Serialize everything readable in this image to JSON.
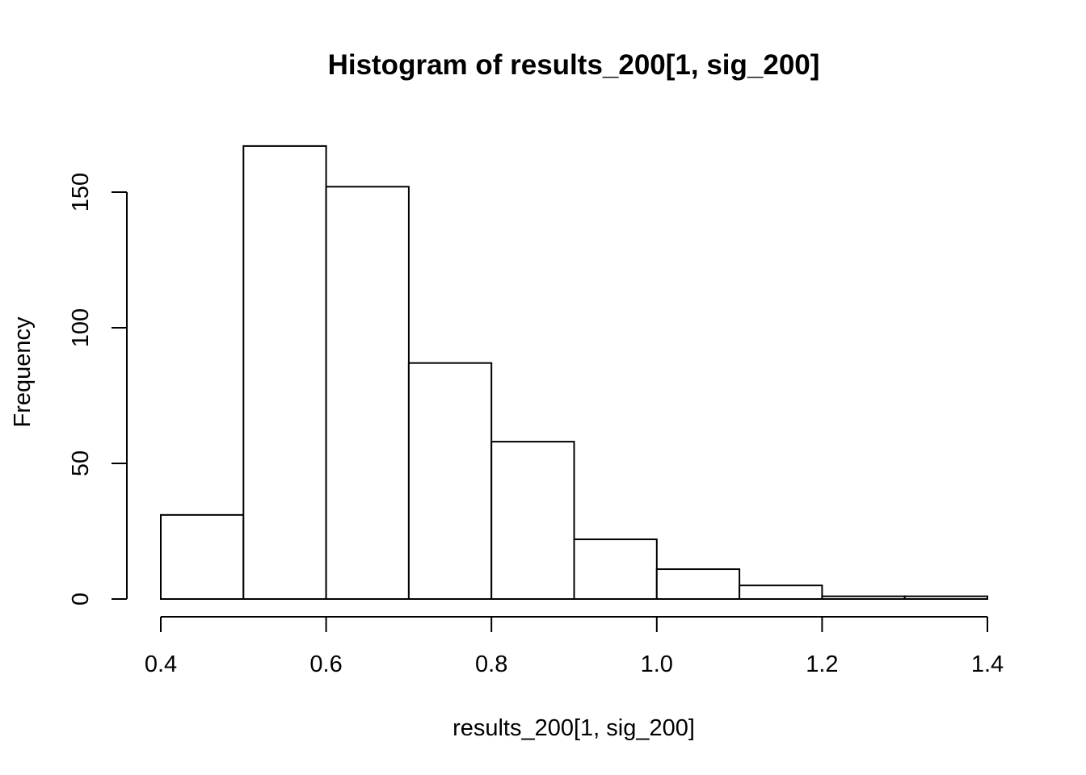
{
  "chart_data": {
    "type": "bar",
    "subtype": "histogram",
    "title": "Histogram of results_200[1, sig_200]",
    "xlabel": "results_200[1, sig_200]",
    "ylabel": "Frequency",
    "bins": [
      {
        "x0": 0.4,
        "x1": 0.5,
        "count": 31
      },
      {
        "x0": 0.5,
        "x1": 0.6,
        "count": 167
      },
      {
        "x0": 0.6,
        "x1": 0.7,
        "count": 152
      },
      {
        "x0": 0.7,
        "x1": 0.8,
        "count": 87
      },
      {
        "x0": 0.8,
        "x1": 0.9,
        "count": 58
      },
      {
        "x0": 0.9,
        "x1": 1.0,
        "count": 22
      },
      {
        "x0": 1.0,
        "x1": 1.1,
        "count": 11
      },
      {
        "x0": 1.1,
        "x1": 1.2,
        "count": 5
      },
      {
        "x0": 1.2,
        "x1": 1.3,
        "count": 1
      },
      {
        "x0": 1.3,
        "x1": 1.4,
        "count": 1
      }
    ],
    "xlim": [
      0.4,
      1.4
    ],
    "ylim": [
      0,
      167
    ],
    "x_ticks": [
      0.4,
      0.6,
      0.8,
      1.0,
      1.2,
      1.4
    ],
    "x_tick_labels": [
      "0.4",
      "0.6",
      "0.8",
      "1.0",
      "1.2",
      "1.4"
    ],
    "y_ticks": [
      0,
      50,
      100,
      150
    ],
    "y_tick_labels": [
      "0",
      "50",
      "100",
      "150"
    ],
    "grid": false,
    "legend": "none",
    "colors": {
      "bar_fill": "#ffffff",
      "bar_stroke": "#000000",
      "axis": "#000000",
      "text": "#000000"
    }
  }
}
